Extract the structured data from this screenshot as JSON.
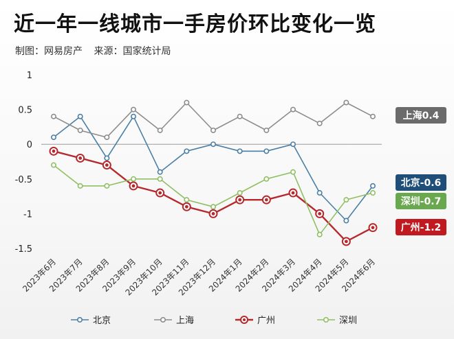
{
  "title": "近一年一线城市一手房价环比变化一览",
  "subtitle": {
    "producer": "制图：网易房产",
    "source": "来源：国家统计局"
  },
  "chart_data": {
    "type": "line",
    "categories": [
      "2023年6月",
      "2023年7月",
      "2023年8月",
      "2023年9月",
      "2023年10月",
      "2023年11月",
      "2023年12月",
      "2024年1月",
      "2024年2月",
      "2024年3月",
      "2024年4月",
      "2024年5月",
      "2024年6月"
    ],
    "ylim": [
      -1.5,
      1
    ],
    "yticks": [
      "1",
      "0.5",
      "0",
      "-0.5",
      "-1",
      "-1.5"
    ],
    "grid": false,
    "legend": "bottom",
    "series": [
      {
        "name": "北京",
        "color": "#4a7fa5",
        "values": [
          0.1,
          0.4,
          -0.2,
          0.4,
          -0.4,
          -0.1,
          0,
          -0.1,
          -0.1,
          0,
          -0.7,
          -1.1,
          -0.6
        ],
        "tag": "北京-0.6",
        "tag_color": "#1f4e79"
      },
      {
        "name": "上海",
        "color": "#8c8c8c",
        "values": [
          0.4,
          0.2,
          0.1,
          0.5,
          0.2,
          0.6,
          0.2,
          0.4,
          0.2,
          0.5,
          0.3,
          0.6,
          0.4
        ],
        "tag": "上海0.4",
        "tag_color": "#6b6b6b"
      },
      {
        "name": "广州",
        "color": "#b5292c",
        "values": [
          -0.1,
          -0.2,
          -0.3,
          -0.6,
          -0.7,
          -0.9,
          -1.0,
          -0.8,
          -0.8,
          -0.7,
          -1.0,
          -1.4,
          -1.2
        ],
        "tag": "广州-1.2",
        "tag_color": "#c0191f"
      },
      {
        "name": "深圳",
        "color": "#8fbf63",
        "values": [
          -0.3,
          -0.6,
          -0.6,
          -0.5,
          -0.5,
          -0.8,
          -0.9,
          -0.7,
          -0.5,
          -0.4,
          -1.3,
          -0.8,
          -0.7
        ],
        "tag": "深圳-0.7",
        "tag_color": "#6aa84f"
      }
    ]
  }
}
